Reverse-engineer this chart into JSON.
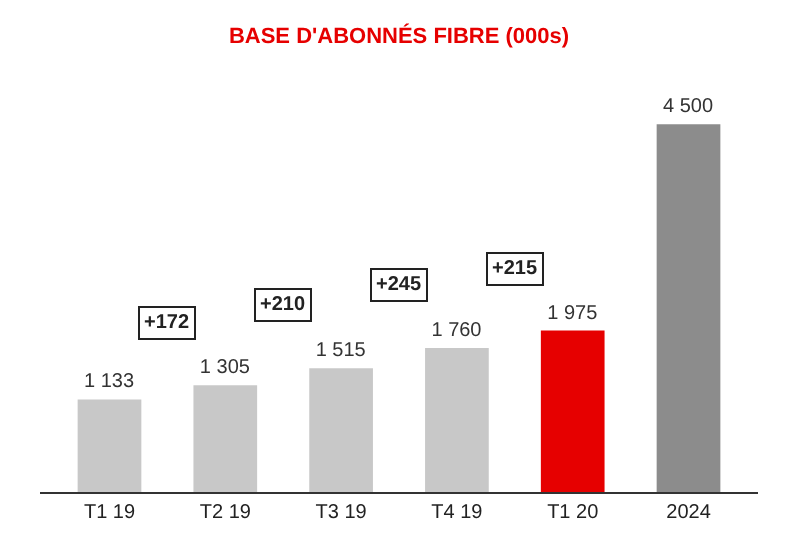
{
  "chart_data": {
    "type": "bar",
    "title": "BASE D'ABONNÉS FIBRE (000s)",
    "categories": [
      "T1 19",
      "T2 19",
      "T3 19",
      "T4 19",
      "T1 20",
      "2024"
    ],
    "values": [
      1133,
      1305,
      1515,
      1760,
      1975,
      4500
    ],
    "value_labels": [
      "1 133",
      "1 305",
      "1 515",
      "1 760",
      "1 975",
      "4 500"
    ],
    "colors": [
      "#c8c8c8",
      "#c8c8c8",
      "#c8c8c8",
      "#c8c8c8",
      "#e60000",
      "#8c8c8c"
    ],
    "annotations": [
      "+172",
      "+210",
      "+245",
      "+215"
    ]
  }
}
